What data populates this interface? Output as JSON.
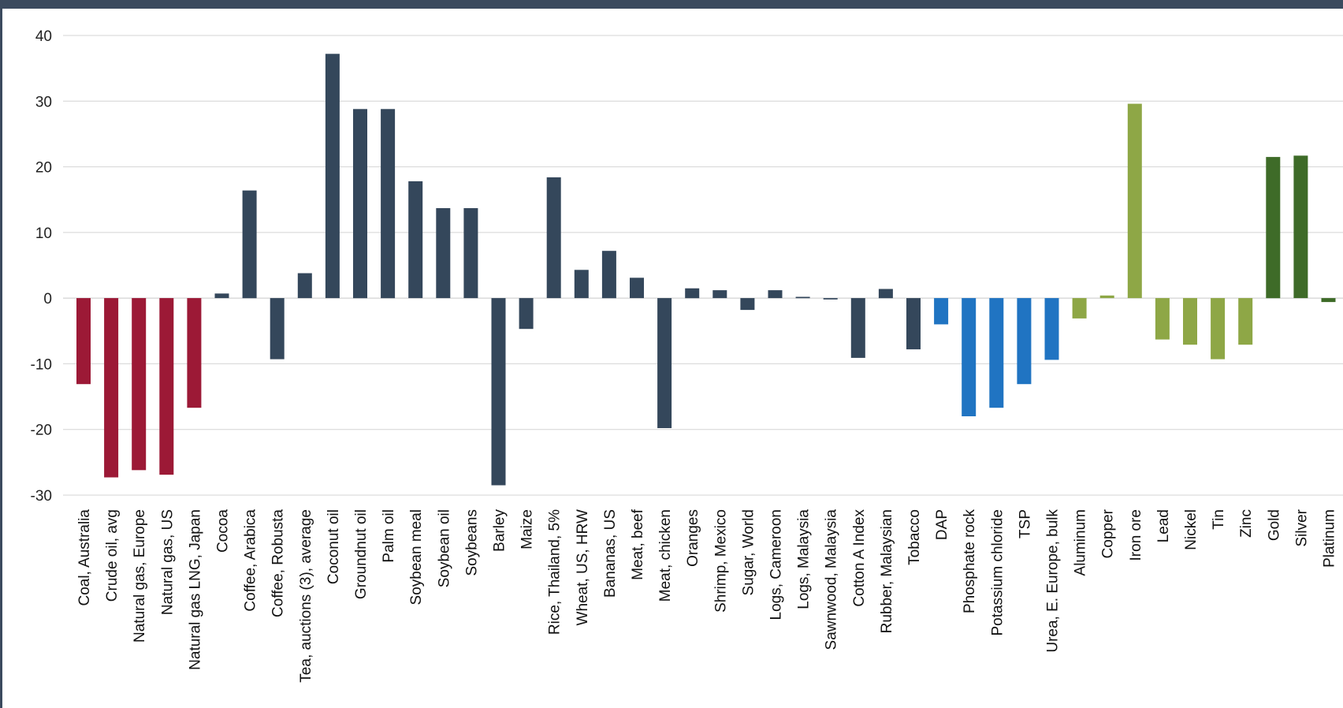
{
  "chart_data": {
    "type": "bar",
    "title": "",
    "xlabel": "",
    "ylabel": "",
    "ylim": [
      -30,
      40
    ],
    "yticks": [
      40,
      30,
      20,
      10,
      0,
      -10,
      -20,
      -30
    ],
    "grid": true,
    "legend": "none",
    "colors": {
      "energy": "#9c1936",
      "agriculture": "#34475b",
      "fertilizers": "#2074c2",
      "base_metals": "#8ea746",
      "precious_metals": "#3e6b28"
    },
    "categories": [
      "Coal, Australia",
      "Crude oil, avg",
      "Natural gas, Europe",
      "Natural gas, US",
      "Natural gas LNG, Japan",
      "Cocoa",
      "Coffee, Arabica",
      "Coffee, Robusta",
      "Tea, auctions (3), average",
      "Coconut oil",
      "Groundnut oil",
      "Palm oil",
      "Soybean meal",
      "Soybean oil",
      "Soybeans",
      "Barley",
      "Maize",
      "Rice, Thailand, 5%",
      "Wheat, US, HRW",
      "Bananas, US",
      "Meat, beef",
      "Meat, chicken",
      "Oranges",
      "Shrimp, Mexico",
      "Sugar, World",
      "Logs, Cameroon",
      "Logs, Malaysia",
      "Sawnwood, Malaysia",
      "Cotton A Index",
      "Rubber, Malaysian",
      "Tobacco",
      "DAP",
      "Phosphate rock",
      "Potassium chloride",
      "TSP",
      "Urea, E. Europe, bulk",
      "Aluminum",
      "Copper",
      "Iron ore",
      "Lead",
      "Nickel",
      "Tin",
      "Zinc",
      "Gold",
      "Silver",
      "Platinum"
    ],
    "groups": [
      "energy",
      "energy",
      "energy",
      "energy",
      "energy",
      "agriculture",
      "agriculture",
      "agriculture",
      "agriculture",
      "agriculture",
      "agriculture",
      "agriculture",
      "agriculture",
      "agriculture",
      "agriculture",
      "agriculture",
      "agriculture",
      "agriculture",
      "agriculture",
      "agriculture",
      "agriculture",
      "agriculture",
      "agriculture",
      "agriculture",
      "agriculture",
      "agriculture",
      "agriculture",
      "agriculture",
      "agriculture",
      "agriculture",
      "agriculture",
      "fertilizers",
      "fertilizers",
      "fertilizers",
      "fertilizers",
      "fertilizers",
      "base_metals",
      "base_metals",
      "base_metals",
      "base_metals",
      "base_metals",
      "base_metals",
      "base_metals",
      "precious_metals",
      "precious_metals",
      "precious_metals"
    ],
    "values": [
      -13.1,
      -27.3,
      -26.2,
      -26.9,
      -16.7,
      0.7,
      16.4,
      -9.3,
      3.8,
      37.2,
      28.8,
      28.8,
      17.8,
      13.7,
      13.7,
      -28.5,
      -4.7,
      18.4,
      4.3,
      7.2,
      3.1,
      -19.8,
      1.5,
      1.2,
      -1.8,
      1.2,
      0.2,
      -0.2,
      -9.1,
      1.4,
      -7.8,
      -4.0,
      -18.0,
      -16.7,
      -13.1,
      -9.4,
      -3.1,
      0.4,
      29.6,
      -6.3,
      -7.1,
      -9.3,
      -7.1,
      21.5,
      21.7,
      -0.6
    ]
  }
}
